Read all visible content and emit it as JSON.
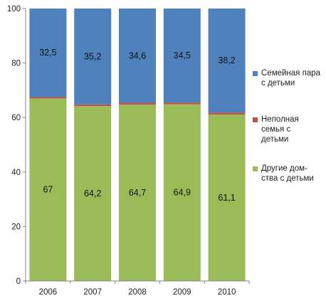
{
  "chart_data": {
    "type": "bar",
    "stacked": true,
    "categories": [
      "2006",
      "2007",
      "2008",
      "2009",
      "2010"
    ],
    "series": [
      {
        "name": "Другие дом-\nства с детьми",
        "values": [
          67,
          64.2,
          64.7,
          64.9,
          61.1
        ],
        "labels": [
          "67",
          "64,2",
          "64,7",
          "64,9",
          "61,1"
        ],
        "color": "#9bbb59"
      },
      {
        "name": "Неполная\nсемья с\nдетьми",
        "values": [
          0.5,
          0.6,
          0.7,
          0.6,
          0.7
        ],
        "color": "#c0504d"
      },
      {
        "name": "Семейная пара\nс детьми",
        "values": [
          32.5,
          35.2,
          34.6,
          34.5,
          38.2
        ],
        "labels": [
          "32,5",
          "35,2",
          "34,6",
          "34,5",
          "38,2"
        ],
        "color": "#4f81bd"
      }
    ],
    "ylim": [
      0,
      100
    ],
    "yticks": [
      "0",
      "20",
      "40",
      "60",
      "80",
      "100"
    ],
    "grid": false,
    "legend_position": "right"
  },
  "legend": [
    {
      "label": "Семейная пара\nс детьми",
      "color": "#4f81bd"
    },
    {
      "label": "Неполная\nсемья с\nдетьми",
      "color": "#c0504d"
    },
    {
      "label": "Другие дом-\nства с детьми",
      "color": "#9bbb59"
    }
  ]
}
